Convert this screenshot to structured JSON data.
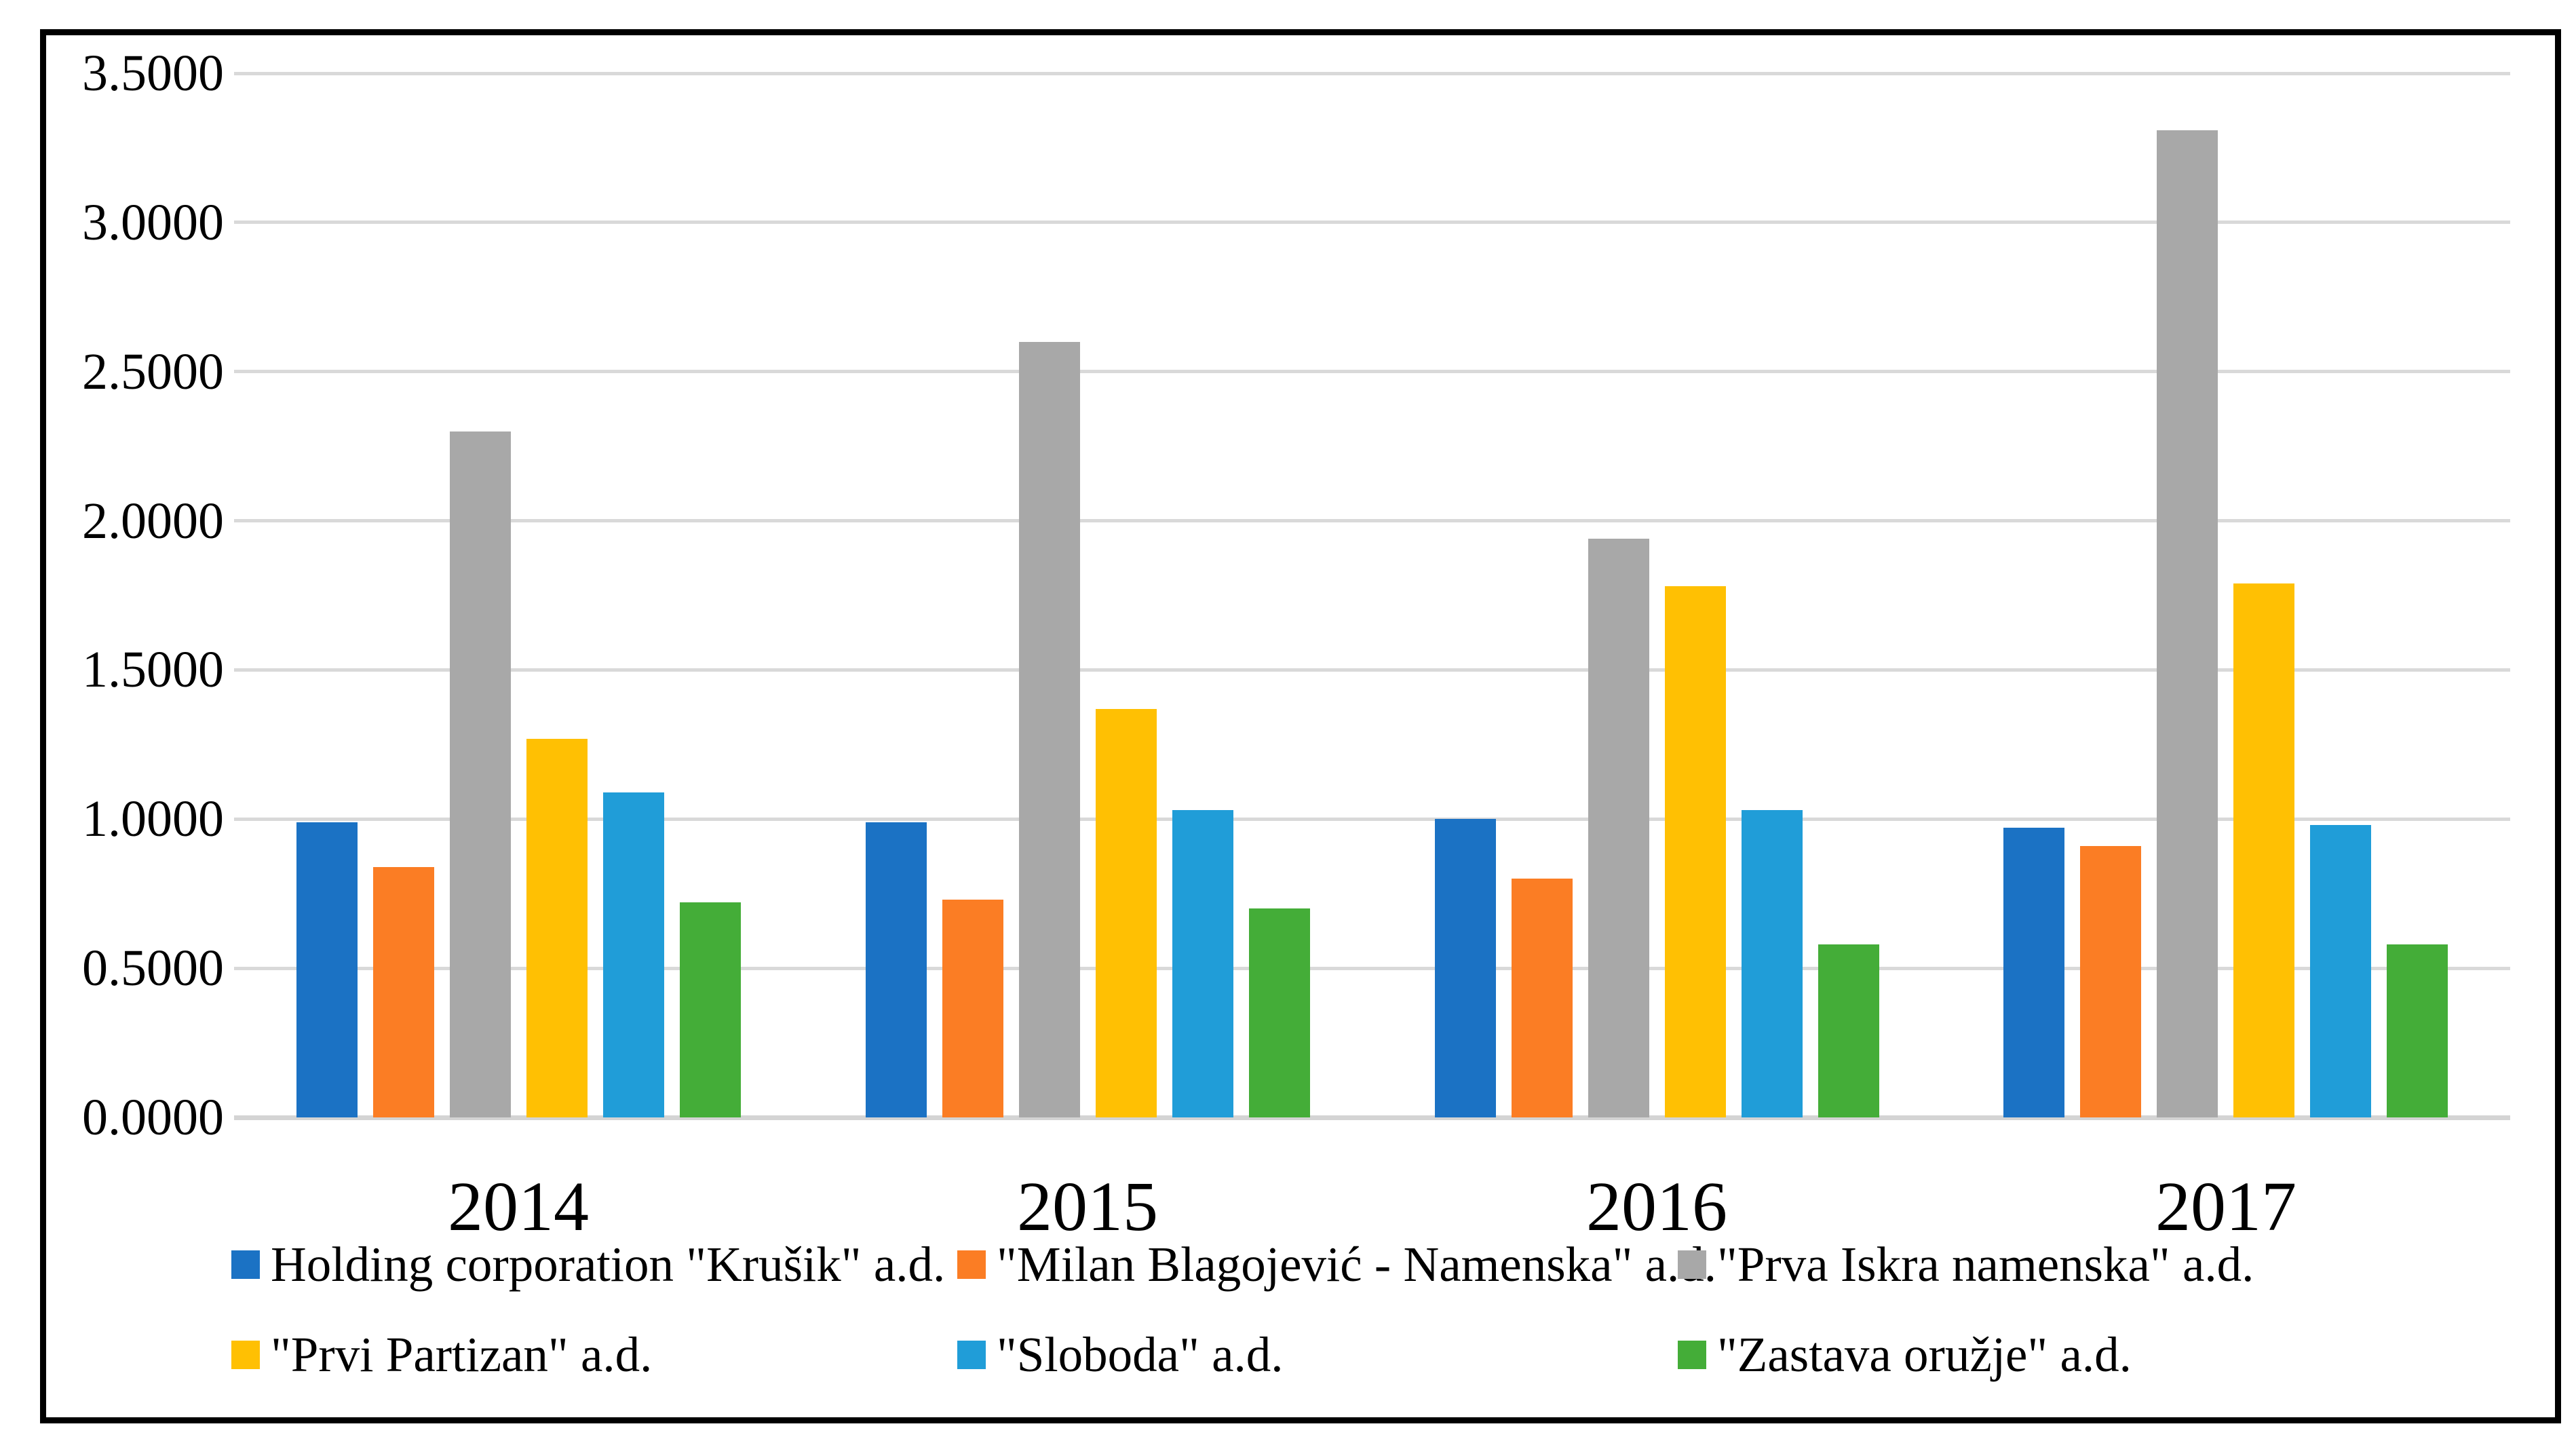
{
  "chart_data": {
    "type": "bar",
    "title": "",
    "xlabel": "",
    "ylabel": "",
    "categories": [
      "2014",
      "2015",
      "2016",
      "2017"
    ],
    "series": [
      {
        "name": "Holding corporation \"Krušik\" a.d.",
        "color": "#1B72C4",
        "values": [
          0.99,
          0.99,
          1.0,
          0.97
        ]
      },
      {
        "name": "\"Milan Blagojević - Namenska\" a.d.",
        "color": "#FB7D24",
        "values": [
          0.84,
          0.73,
          0.8,
          0.91
        ]
      },
      {
        "name": "\"Prva Iskra namenska\" a.d.",
        "color": "#A8A8A8",
        "values": [
          2.3,
          2.6,
          1.94,
          3.31
        ]
      },
      {
        "name": "\"Prvi Partizan\" a.d.",
        "color": "#FFC003",
        "values": [
          1.27,
          1.37,
          1.78,
          1.79
        ]
      },
      {
        "name": "\"Sloboda\" a.d.",
        "color": "#209DD8",
        "values": [
          1.09,
          1.03,
          1.03,
          0.98
        ]
      },
      {
        "name": "\"Zastava oružje\" a.d.",
        "color": "#44AD38",
        "values": [
          0.72,
          0.7,
          0.58,
          0.58
        ]
      }
    ],
    "ylim": [
      0,
      3.5
    ],
    "ytick_step": 0.5,
    "y_tick_labels": [
      "0.0000",
      "0.5000",
      "1.0000",
      "1.5000",
      "2.0000",
      "2.5000",
      "3.0000",
      "3.5000"
    ],
    "grid": true,
    "gridline_color": "#d9d9d9",
    "legend_position": "bottom",
    "border_color": "#000000"
  }
}
